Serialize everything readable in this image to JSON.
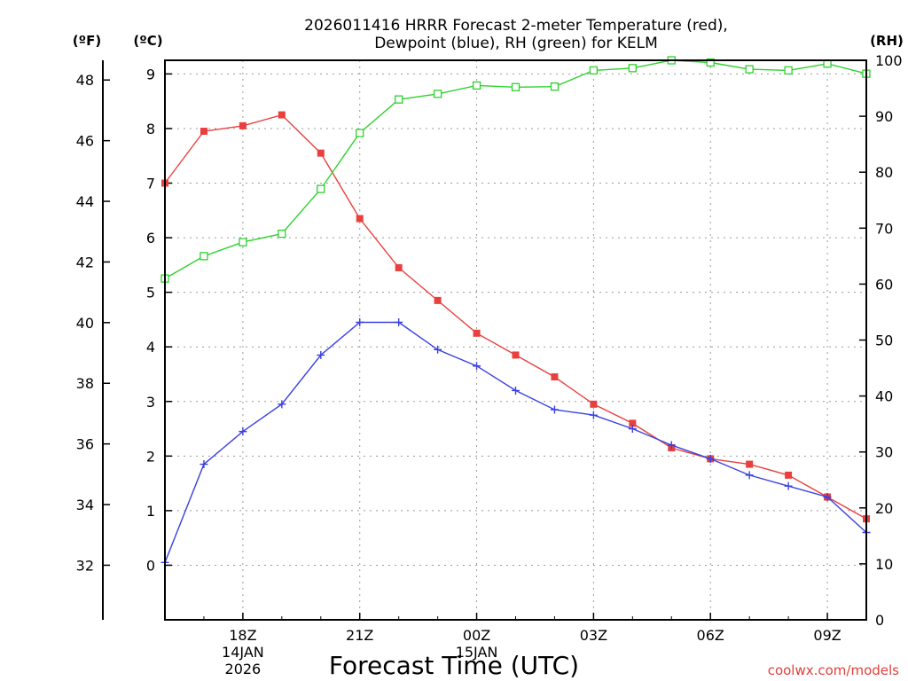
{
  "chart_data": {
    "type": "line",
    "title_line1": "2026011416 HRRR Forecast 2-meter Temperature (red),",
    "title_line2": "Dewpoint (blue), RH (green) for KELM",
    "xlabel": "Forecast Time (UTC)",
    "units": {
      "fahrenheit": "(ºF)",
      "celsius": "(ºC)",
      "rh": "(RH)"
    },
    "x_hours": [
      0,
      1,
      2,
      3,
      4,
      5,
      6,
      7,
      8,
      9,
      10,
      11,
      12,
      13,
      14,
      15,
      16,
      17,
      18
    ],
    "x_ticks": [
      {
        "hour": 2,
        "label": "18Z",
        "sub1": "14JAN",
        "sub2": "2026"
      },
      {
        "hour": 5,
        "label": "21Z",
        "sub1": "",
        "sub2": ""
      },
      {
        "hour": 8,
        "label": "00Z",
        "sub1": "15JAN",
        "sub2": ""
      },
      {
        "hour": 11,
        "label": "03Z",
        "sub1": "",
        "sub2": ""
      },
      {
        "hour": 14,
        "label": "06Z",
        "sub1": "",
        "sub2": ""
      },
      {
        "hour": 17,
        "label": "09Z",
        "sub1": "",
        "sub2": ""
      }
    ],
    "celsius_axis": {
      "min": -1.0,
      "max": 9.25,
      "ticks": [
        0,
        1,
        2,
        3,
        4,
        5,
        6,
        7,
        8,
        9
      ]
    },
    "fahrenheit_axis": {
      "ticks": [
        32,
        34,
        36,
        38,
        40,
        42,
        44,
        46,
        48
      ]
    },
    "rh_axis": {
      "min": 0,
      "max": 100,
      "ticks": [
        0,
        10,
        20,
        30,
        40,
        50,
        60,
        70,
        80,
        90,
        100
      ]
    },
    "series": [
      {
        "name": "Temperature",
        "unit": "C",
        "color": "#e8403e",
        "marker": "filled-square",
        "values": [
          7.0,
          7.95,
          8.05,
          8.25,
          7.55,
          6.35,
          5.45,
          4.85,
          4.25,
          3.85,
          3.45,
          2.95,
          2.6,
          2.15,
          1.95,
          1.85,
          1.65,
          1.25,
          0.85
        ]
      },
      {
        "name": "Dewpoint",
        "unit": "C",
        "color": "#3a40e0",
        "marker": "plus",
        "values": [
          0.05,
          1.85,
          2.45,
          2.95,
          3.85,
          4.45,
          4.45,
          3.95,
          3.65,
          3.2,
          2.85,
          2.75,
          2.5,
          2.2,
          1.95,
          1.65,
          1.45,
          1.25,
          0.6
        ]
      },
      {
        "name": "RH",
        "unit": "%",
        "color": "#2ed12e",
        "marker": "open-square",
        "values": [
          61,
          65,
          67.5,
          69,
          77,
          87,
          93,
          94,
          95.5,
          95.2,
          95.3,
          98.2,
          98.6,
          100,
          99.6,
          98.4,
          98.2,
          99.4,
          97.6
        ]
      }
    ],
    "credit": "coolwx.com/models"
  }
}
